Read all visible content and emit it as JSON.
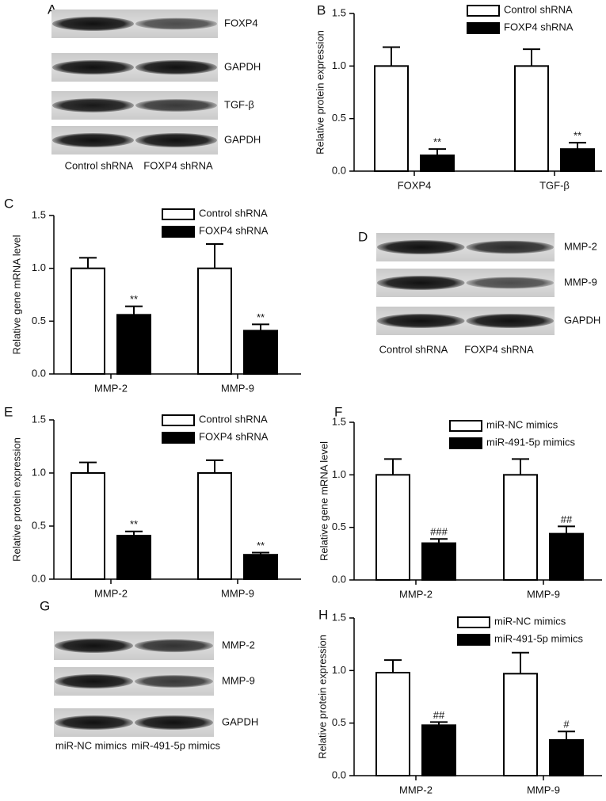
{
  "chart_data": [
    {
      "panel": "B",
      "type": "bar",
      "ylabel": "Relative protein expression",
      "categories": [
        "FOXP4",
        "TGF-β"
      ],
      "series": [
        {
          "name": "Control shRNA",
          "color": "#ffffff",
          "values": [
            1.0,
            1.0
          ],
          "errors": [
            0.18,
            0.16
          ]
        },
        {
          "name": "FOXP4 shRNA",
          "color": "#000000",
          "values": [
            0.15,
            0.21
          ],
          "errors": [
            0.06,
            0.06
          ],
          "annotations": [
            "**",
            "**"
          ]
        }
      ],
      "ylim": [
        0,
        1.5
      ],
      "yticks": [
        {
          "value": 0,
          "label": "0.0"
        },
        0.5,
        {
          "value": 1,
          "label": "1.0"
        },
        1.5
      ]
    },
    {
      "panel": "C",
      "type": "bar",
      "ylabel": "Relative gene mRNA level",
      "categories": [
        "MMP-2",
        "MMP-9"
      ],
      "series": [
        {
          "name": "Control shRNA",
          "color": "#ffffff",
          "values": [
            1.0,
            1.0
          ],
          "errors": [
            0.1,
            0.23
          ]
        },
        {
          "name": "FOXP4 shRNA",
          "color": "#000000",
          "values": [
            0.56,
            0.41
          ],
          "errors": [
            0.08,
            0.06
          ],
          "annotations": [
            "**",
            "**"
          ]
        }
      ],
      "ylim": [
        0,
        1.5
      ],
      "yticks": [
        {
          "value": 0,
          "label": "0.0"
        },
        0.5,
        {
          "value": 1,
          "label": "1.0"
        },
        1.5
      ]
    },
    {
      "panel": "E",
      "type": "bar",
      "ylabel": "Relative protein expression",
      "categories": [
        "MMP-2",
        "MMP-9"
      ],
      "series": [
        {
          "name": "Control shRNA",
          "color": "#ffffff",
          "values": [
            1.0,
            1.0
          ],
          "errors": [
            0.1,
            0.12
          ]
        },
        {
          "name": "FOXP4 shRNA",
          "color": "#000000",
          "values": [
            0.41,
            0.23
          ],
          "errors": [
            0.04,
            0.02
          ],
          "annotations": [
            "**",
            "**"
          ]
        }
      ],
      "ylim": [
        0,
        1.5
      ],
      "yticks": [
        {
          "value": 0,
          "label": "0.0"
        },
        0.5,
        {
          "value": 1,
          "label": "1.0"
        },
        1.5
      ]
    },
    {
      "panel": "F",
      "type": "bar",
      "ylabel": "Relative gene mRNA level",
      "categories": [
        "MMP-2",
        "MMP-9"
      ],
      "series": [
        {
          "name": "miR-NC mimics",
          "color": "#ffffff",
          "values": [
            1.0,
            1.0
          ],
          "errors": [
            0.15,
            0.15
          ]
        },
        {
          "name": "miR-491-5p mimics",
          "color": "#000000",
          "values": [
            0.35,
            0.44
          ],
          "errors": [
            0.04,
            0.07
          ],
          "annotations": [
            "###",
            "##"
          ]
        }
      ],
      "ylim": [
        0,
        1.5
      ],
      "yticks": [
        {
          "value": 0,
          "label": "0.0"
        },
        0.5,
        {
          "value": 1,
          "label": "1.0"
        },
        1.5
      ]
    },
    {
      "panel": "H",
      "type": "bar",
      "ylabel": "Relative protein expression",
      "categories": [
        "MMP-2",
        "MMP-9"
      ],
      "series": [
        {
          "name": "miR-NC mimics",
          "color": "#ffffff",
          "values": [
            0.98,
            0.97
          ],
          "errors": [
            0.12,
            0.2
          ]
        },
        {
          "name": "miR-491-5p mimics",
          "color": "#000000",
          "values": [
            0.48,
            0.34
          ],
          "errors": [
            0.03,
            0.08
          ],
          "annotations": [
            "##",
            "#"
          ]
        }
      ],
      "ylim": [
        0,
        1.5
      ],
      "yticks": [
        {
          "value": 0,
          "label": "0.0"
        },
        0.5,
        {
          "value": 1,
          "label": "1.0"
        },
        1.5
      ]
    }
  ],
  "blots": [
    {
      "panel": "A",
      "rows": [
        "FOXP4",
        "GAPDH",
        "TGF-β",
        "GAPDH"
      ],
      "lanes": [
        "Control shRNA",
        "FOXP4 shRNA"
      ]
    },
    {
      "panel": "D",
      "rows": [
        "MMP-2",
        "MMP-9",
        "GAPDH"
      ],
      "lanes": [
        "Control shRNA",
        "FOXP4 shRNA"
      ]
    },
    {
      "panel": "G",
      "rows": [
        "MMP-2",
        "MMP-9",
        "GAPDH"
      ],
      "lanes": [
        "miR-NC mimics",
        "miR-491-5p mimics"
      ]
    }
  ]
}
